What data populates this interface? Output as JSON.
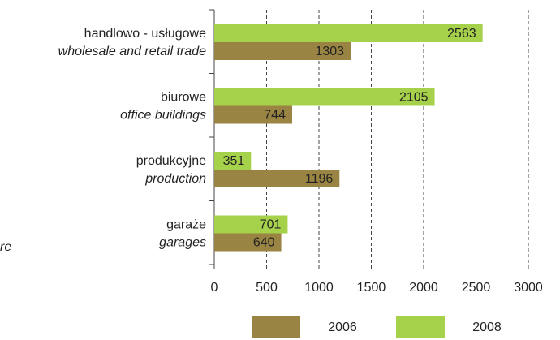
{
  "chart_data": {
    "type": "bar",
    "orientation": "horizontal",
    "categories": [
      "handlowo - usługowe",
      "biurowe",
      "produkcyjne",
      "garaże"
    ],
    "categories_en": [
      "wholesale and retail trade",
      "office buildings",
      "production",
      "garages"
    ],
    "series": [
      {
        "name": "2006",
        "color": "#9a8443",
        "values": [
          1303,
          744,
          1196,
          640
        ]
      },
      {
        "name": "2008",
        "color": "#a6d14a",
        "values": [
          2563,
          2105,
          351,
          701
        ]
      }
    ],
    "xlim": [
      0,
      3000
    ],
    "xticks": [
      0,
      500,
      1000,
      1500,
      2000,
      2500,
      3000
    ],
    "grid": true,
    "legend": "bottom",
    "annotation": "re"
  }
}
